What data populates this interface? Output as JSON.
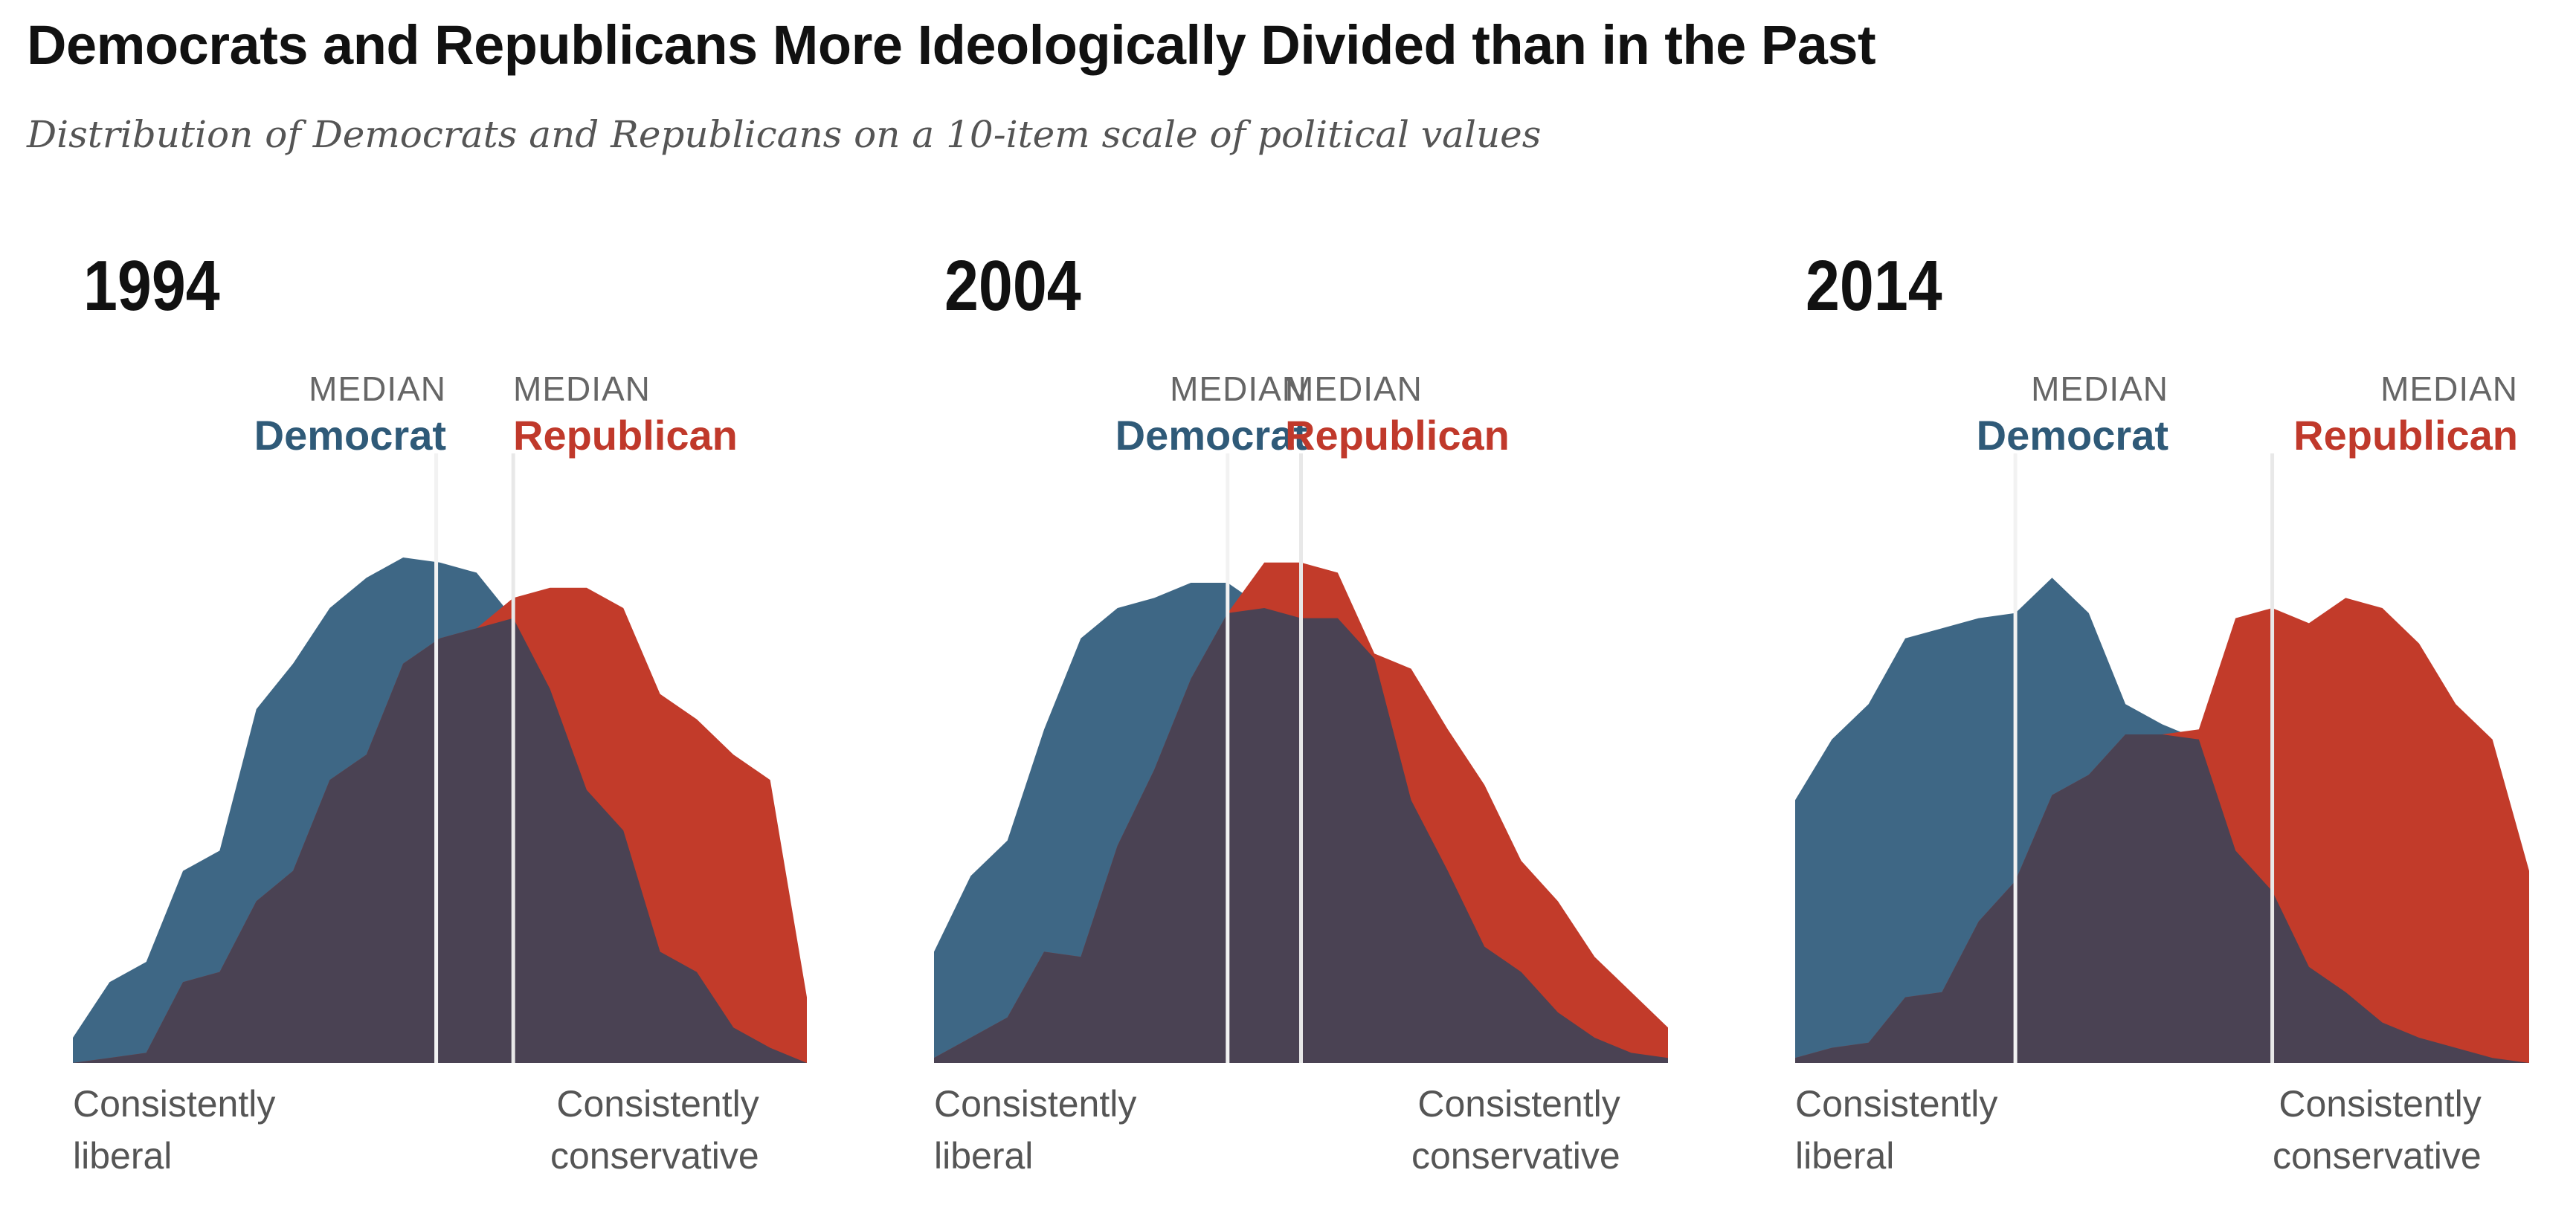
{
  "title": "Democrats and Republicans More Ideologically Divided than in the Past",
  "subtitle": "Distribution of Democrats and Republicans on a 10-item scale of political values",
  "colors": {
    "democrat": "#3e6785",
    "republican": "#c23b2a",
    "overlap": "#4a4253",
    "median_line": "#ffffff",
    "democrat_label": "#2f5a78",
    "republican_label": "#c0392b"
  },
  "chart_data": [
    {
      "type": "area",
      "year": "1994",
      "x": [
        -10,
        -9,
        -8,
        -7,
        -6,
        -5,
        -4,
        -3,
        -2,
        -1,
        0,
        1,
        2,
        3,
        4,
        5,
        6,
        7,
        8,
        9,
        10
      ],
      "xlabel_left": [
        "Consistently",
        "liberal"
      ],
      "xlabel_right": [
        "Consistently",
        "conservative"
      ],
      "ylim": [
        0,
        1
      ],
      "median_label": "MEDIAN",
      "series": [
        {
          "name": "Democrat",
          "median": -0.1,
          "values": [
            0.05,
            0.16,
            0.2,
            0.38,
            0.42,
            0.7,
            0.79,
            0.9,
            0.96,
            1.0,
            0.99,
            0.97,
            0.88,
            0.74,
            0.54,
            0.46,
            0.22,
            0.18,
            0.07,
            0.03,
            0.0
          ]
        },
        {
          "name": "Republican",
          "median": 2.0,
          "values": [
            0.0,
            0.01,
            0.02,
            0.16,
            0.18,
            0.32,
            0.38,
            0.56,
            0.61,
            0.79,
            0.84,
            0.86,
            0.92,
            0.94,
            0.94,
            0.9,
            0.73,
            0.68,
            0.61,
            0.56,
            0.13
          ]
        }
      ]
    },
    {
      "type": "area",
      "year": "2004",
      "x": [
        -10,
        -9,
        -8,
        -7,
        -6,
        -5,
        -4,
        -3,
        -2,
        -1,
        0,
        1,
        2,
        3,
        4,
        5,
        6,
        7,
        8,
        9,
        10
      ],
      "xlabel_left": [
        "Consistently",
        "liberal"
      ],
      "xlabel_right": [
        "Consistently",
        "conservative"
      ],
      "ylim": [
        0,
        1
      ],
      "median_label": "MEDIAN",
      "series": [
        {
          "name": "Democrat",
          "median": -2.0,
          "values": [
            0.22,
            0.37,
            0.44,
            0.66,
            0.84,
            0.9,
            0.92,
            0.95,
            0.95,
            0.9,
            0.88,
            0.88,
            0.8,
            0.52,
            0.38,
            0.23,
            0.18,
            0.1,
            0.05,
            0.02,
            0.01
          ]
        },
        {
          "name": "Republican",
          "median": 0.0,
          "values": [
            0.01,
            0.05,
            0.09,
            0.22,
            0.21,
            0.43,
            0.58,
            0.76,
            0.89,
            0.99,
            0.99,
            0.97,
            0.81,
            0.78,
            0.66,
            0.55,
            0.4,
            0.32,
            0.21,
            0.14,
            0.07
          ]
        }
      ]
    },
    {
      "type": "area",
      "year": "2014",
      "x": [
        -10,
        -9,
        -8,
        -7,
        -6,
        -5,
        -4,
        -3,
        -2,
        -1,
        0,
        1,
        2,
        3,
        4,
        5,
        6,
        7,
        8,
        9,
        10
      ],
      "xlabel_left": [
        "Consistently",
        "liberal"
      ],
      "xlabel_right": [
        "Consistently",
        "conservative"
      ],
      "ylim": [
        0,
        1
      ],
      "median_label": "MEDIAN",
      "series": [
        {
          "name": "Democrat",
          "median": -4.0,
          "values": [
            0.52,
            0.64,
            0.71,
            0.84,
            0.86,
            0.88,
            0.89,
            0.96,
            0.89,
            0.71,
            0.67,
            0.64,
            0.42,
            0.34,
            0.19,
            0.14,
            0.08,
            0.05,
            0.03,
            0.01,
            0.0
          ]
        },
        {
          "name": "Republican",
          "median": 3.0,
          "values": [
            0.01,
            0.03,
            0.04,
            0.13,
            0.14,
            0.28,
            0.36,
            0.53,
            0.57,
            0.65,
            0.65,
            0.66,
            0.88,
            0.9,
            0.87,
            0.92,
            0.9,
            0.83,
            0.71,
            0.64,
            0.38
          ]
        }
      ]
    }
  ]
}
